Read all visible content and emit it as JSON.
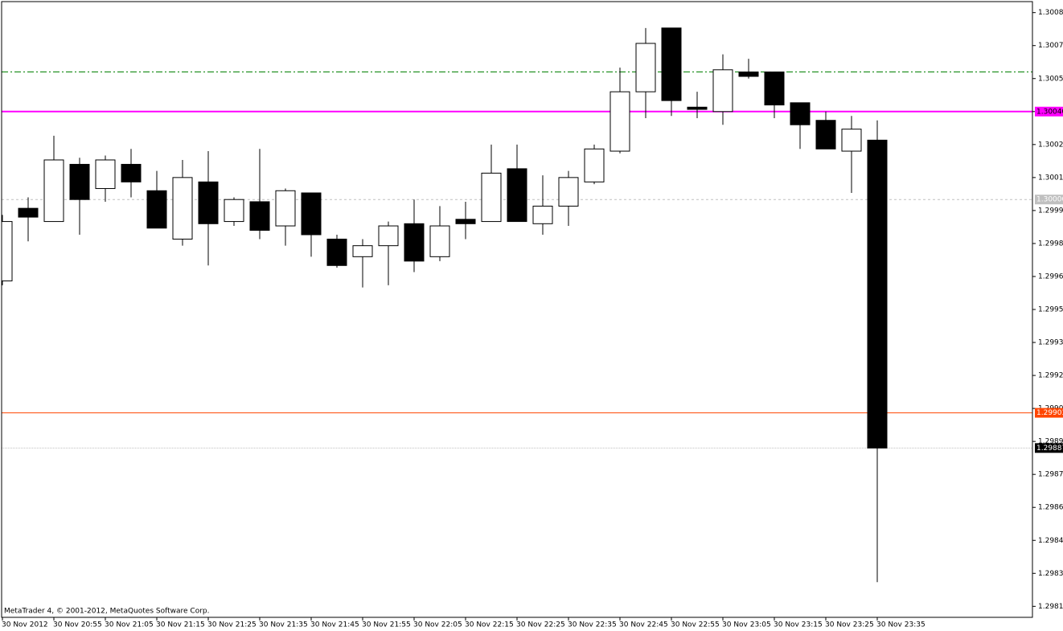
{
  "chart_data": {
    "type": "candlestick",
    "watermark": "MetaTrader 4, © 2001-2012, MetaQuotes Software Corp.",
    "categories": [
      "30 Nov 2012",
      null,
      "30 Nov 20:55",
      null,
      "30 Nov 21:05",
      null,
      "30 Nov 21:15",
      null,
      "30 Nov 21:25",
      null,
      "30 Nov 21:35",
      null,
      "30 Nov 21:45",
      null,
      "30 Nov 21:55",
      null,
      "30 Nov 22:05",
      null,
      "30 Nov 22:15",
      null,
      "30 Nov 22:25",
      null,
      "30 Nov 22:35",
      null,
      "30 Nov 22:45",
      null,
      "30 Nov 22:55",
      null,
      "30 Nov 23:05",
      null,
      "30 Nov 23:15",
      null,
      "30 Nov 23:25",
      null,
      "30 Nov 23:35"
    ],
    "open": [
      1.29963,
      1.29996,
      1.2999,
      1.30016,
      1.30005,
      1.30016,
      1.30004,
      1.29982,
      1.30008,
      1.2999,
      1.29999,
      1.29988,
      1.30003,
      1.29982,
      1.29974,
      1.29979,
      1.29989,
      1.29974,
      1.29991,
      1.2999,
      1.30014,
      1.29989,
      1.29997,
      1.30008,
      1.30022,
      1.30049,
      1.30078,
      1.30042,
      1.3004,
      1.30058,
      1.30058,
      1.30044,
      1.30036,
      1.30022,
      1.30027
    ],
    "high": [
      1.29993,
      1.30001,
      1.30029,
      1.30019,
      1.3002,
      1.30023,
      1.30013,
      1.30018,
      1.30022,
      1.30001,
      1.30023,
      1.30005,
      1.30003,
      1.29984,
      1.29982,
      1.2999,
      1.3,
      1.29997,
      1.29999,
      1.30025,
      1.30025,
      1.30011,
      1.30013,
      1.30025,
      1.3006,
      1.30078,
      1.30078,
      1.30049,
      1.30066,
      1.30064,
      1.30058,
      1.30044,
      1.3004,
      1.30038,
      1.30036
    ],
    "low": [
      1.29961,
      1.29981,
      1.2999,
      1.29984,
      1.29999,
      1.30001,
      1.29987,
      1.29979,
      1.2997,
      1.29988,
      1.29982,
      1.29979,
      1.29974,
      1.29969,
      1.2996,
      1.29961,
      1.29967,
      1.29972,
      1.29982,
      1.2999,
      1.2999,
      1.29984,
      1.29988,
      1.30007,
      1.30021,
      1.30037,
      1.30038,
      1.30037,
      1.30034,
      1.30055,
      1.30037,
      1.30023,
      1.30023,
      1.30003,
      1.29826
    ],
    "close": [
      1.2999,
      1.29992,
      1.30018,
      1.3,
      1.30018,
      1.30008,
      1.29987,
      1.3001,
      1.29989,
      1.3,
      1.29986,
      1.30004,
      1.29984,
      1.2997,
      1.29979,
      1.29988,
      1.29972,
      1.29988,
      1.29989,
      1.30012,
      1.2999,
      1.29997,
      1.3001,
      1.30023,
      1.30049,
      1.30071,
      1.30045,
      1.30041,
      1.30059,
      1.30056,
      1.30043,
      1.30034,
      1.30023,
      1.30032,
      1.29887
    ],
    "bull_color": "#ffffff",
    "bear_color": "#000000",
    "ylim": [
      1.2981,
      1.3009
    ],
    "yticks": [
      1.30085,
      {
        "value": 1.3007,
        "label": "1.30070"
      },
      1.30055,
      {
        "value": 1.3004,
        "label": "1.30040"
      },
      1.30025,
      {
        "value": 1.3001,
        "label": "1.30010"
      },
      1.29995,
      {
        "value": 1.2998,
        "label": "1.29980"
      },
      1.29965,
      {
        "value": 1.2995,
        "label": "1.29950"
      },
      1.29935,
      {
        "value": 1.2992,
        "label": "1.29920"
      },
      1.29905,
      {
        "value": 1.2989,
        "label": "1.29890"
      },
      1.29875,
      {
        "value": 1.2986,
        "label": "1.29860"
      },
      1.29845,
      {
        "value": 1.2983,
        "label": "1.29830"
      },
      1.29815
    ],
    "levels": [
      {
        "value": 1.30058,
        "color": "#008000",
        "style": "dashdot"
      },
      {
        "value": 1.3004,
        "label": "1.30040",
        "color": "#ff00ff",
        "style": "solid",
        "label_color": "#ff00ff"
      },
      {
        "value": 1.3,
        "label": "1.30000",
        "color": "#c0c0c0",
        "style": "dashed",
        "label_color": "#c0c0c0"
      },
      {
        "value": 1.29903,
        "label": "1.29903",
        "color": "#ff4500",
        "style": "solid",
        "label_color": "#ff4500"
      },
      {
        "value": 1.29887,
        "label": "1.29887",
        "color": "#c0c0c0",
        "style": "dotted",
        "label_color": "#000000"
      }
    ]
  }
}
